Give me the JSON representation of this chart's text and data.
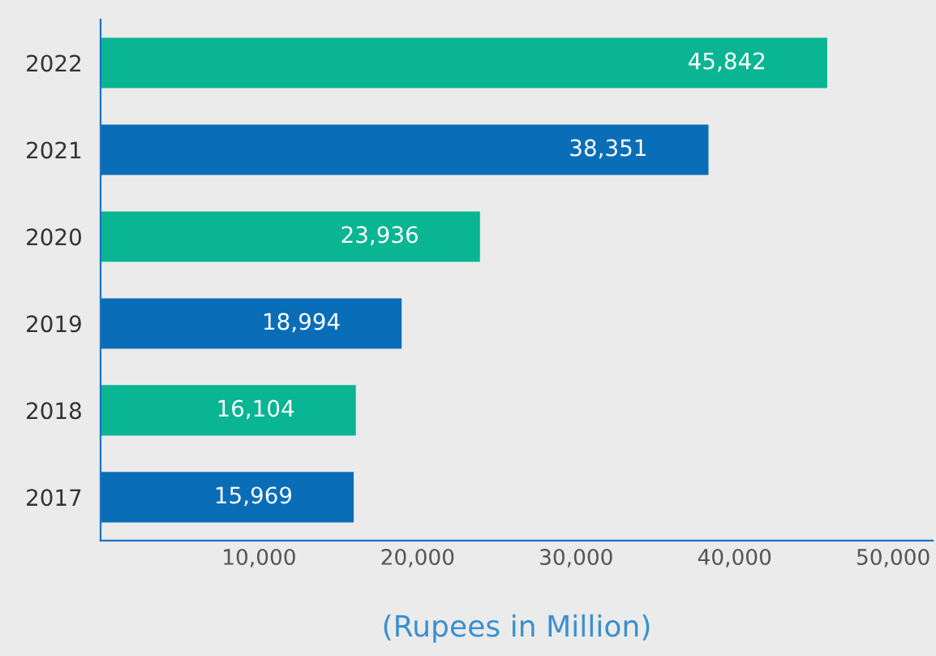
{
  "chart_data": {
    "type": "bar",
    "orientation": "horizontal",
    "xlabel": "(Rupees in Million)",
    "categories": [
      "2022",
      "2021",
      "2020",
      "2019",
      "2018",
      "2017"
    ],
    "values": [
      45842,
      38351,
      23936,
      18994,
      16104,
      15969
    ],
    "colors": [
      "#0ab593",
      "#0a6db8",
      "#0ab593",
      "#0a6db8",
      "#0ab593",
      "#0a6db8"
    ],
    "value_labels": [
      "45,842",
      "38,351",
      "23,936",
      "18,994",
      "16,104",
      "15,969"
    ],
    "xlim": [
      0,
      52500
    ],
    "xticks": [
      {
        "value": 10000,
        "label": "10,000"
      },
      {
        "value": 20000,
        "label": "20,000"
      },
      {
        "value": 30000,
        "label": "30,000"
      },
      {
        "value": 40000,
        "label": "40,000"
      },
      {
        "value": 50000,
        "label": "50,000"
      }
    ],
    "grid": false,
    "legend": false
  }
}
